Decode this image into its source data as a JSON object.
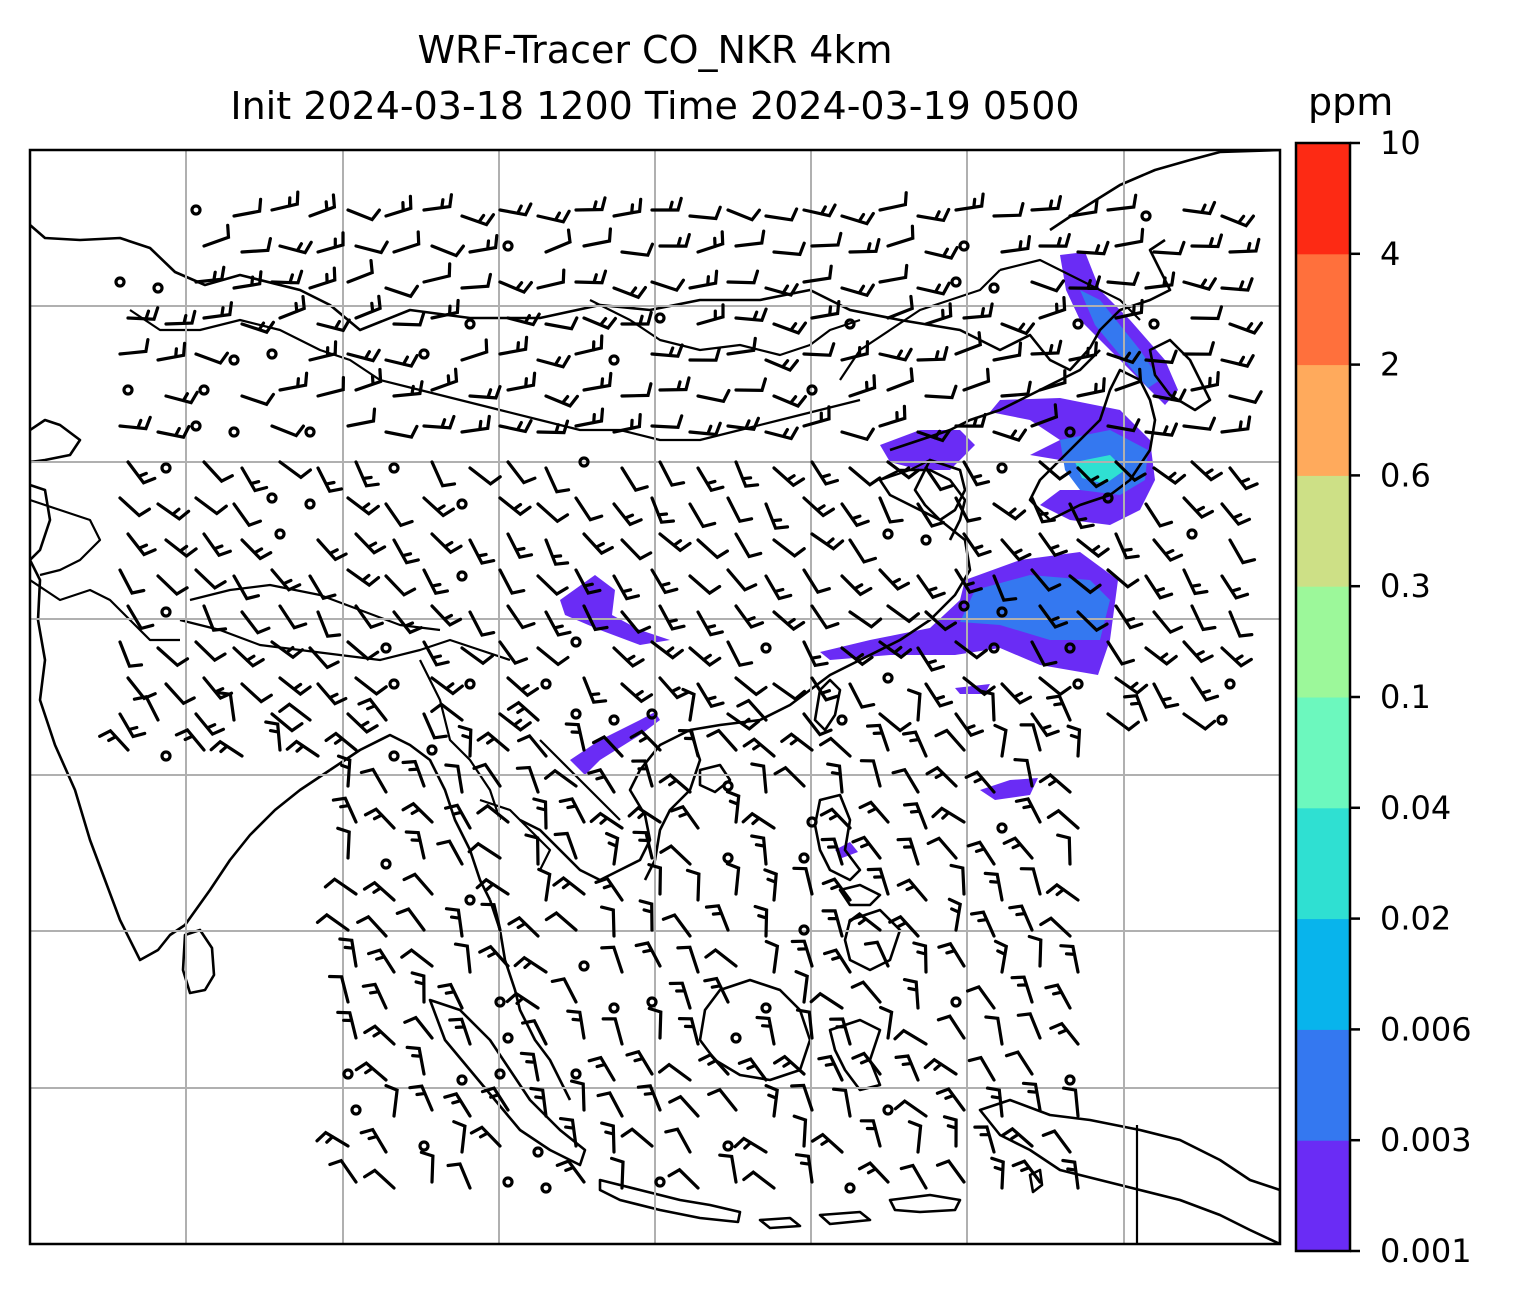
{
  "title": {
    "line1": "WRF-Tracer CO_NKR 4km",
    "line2": "Init 2024-03-18 1200 Time 2024-03-19 0500"
  },
  "colorbar": {
    "units": "ppm",
    "levels": [
      "0.001",
      "0.003",
      "0.006",
      "0.02",
      "0.04",
      "0.1",
      "0.3",
      "0.6",
      "2",
      "4",
      "10"
    ],
    "colors": [
      "#6a2cf5",
      "#3478f0",
      "#08b4ec",
      "#2fe0d2",
      "#6cf8be",
      "#9cf89a",
      "#cde086",
      "#ffaa5c",
      "#ff703c",
      "#fd2a14"
    ]
  },
  "map": {
    "gridlines": true,
    "grid_color": "#b0b0b0",
    "coastline_color": "#000000",
    "features": [
      "coastlines",
      "country borders",
      "wind barbs",
      "tracer concentration shading"
    ]
  }
}
